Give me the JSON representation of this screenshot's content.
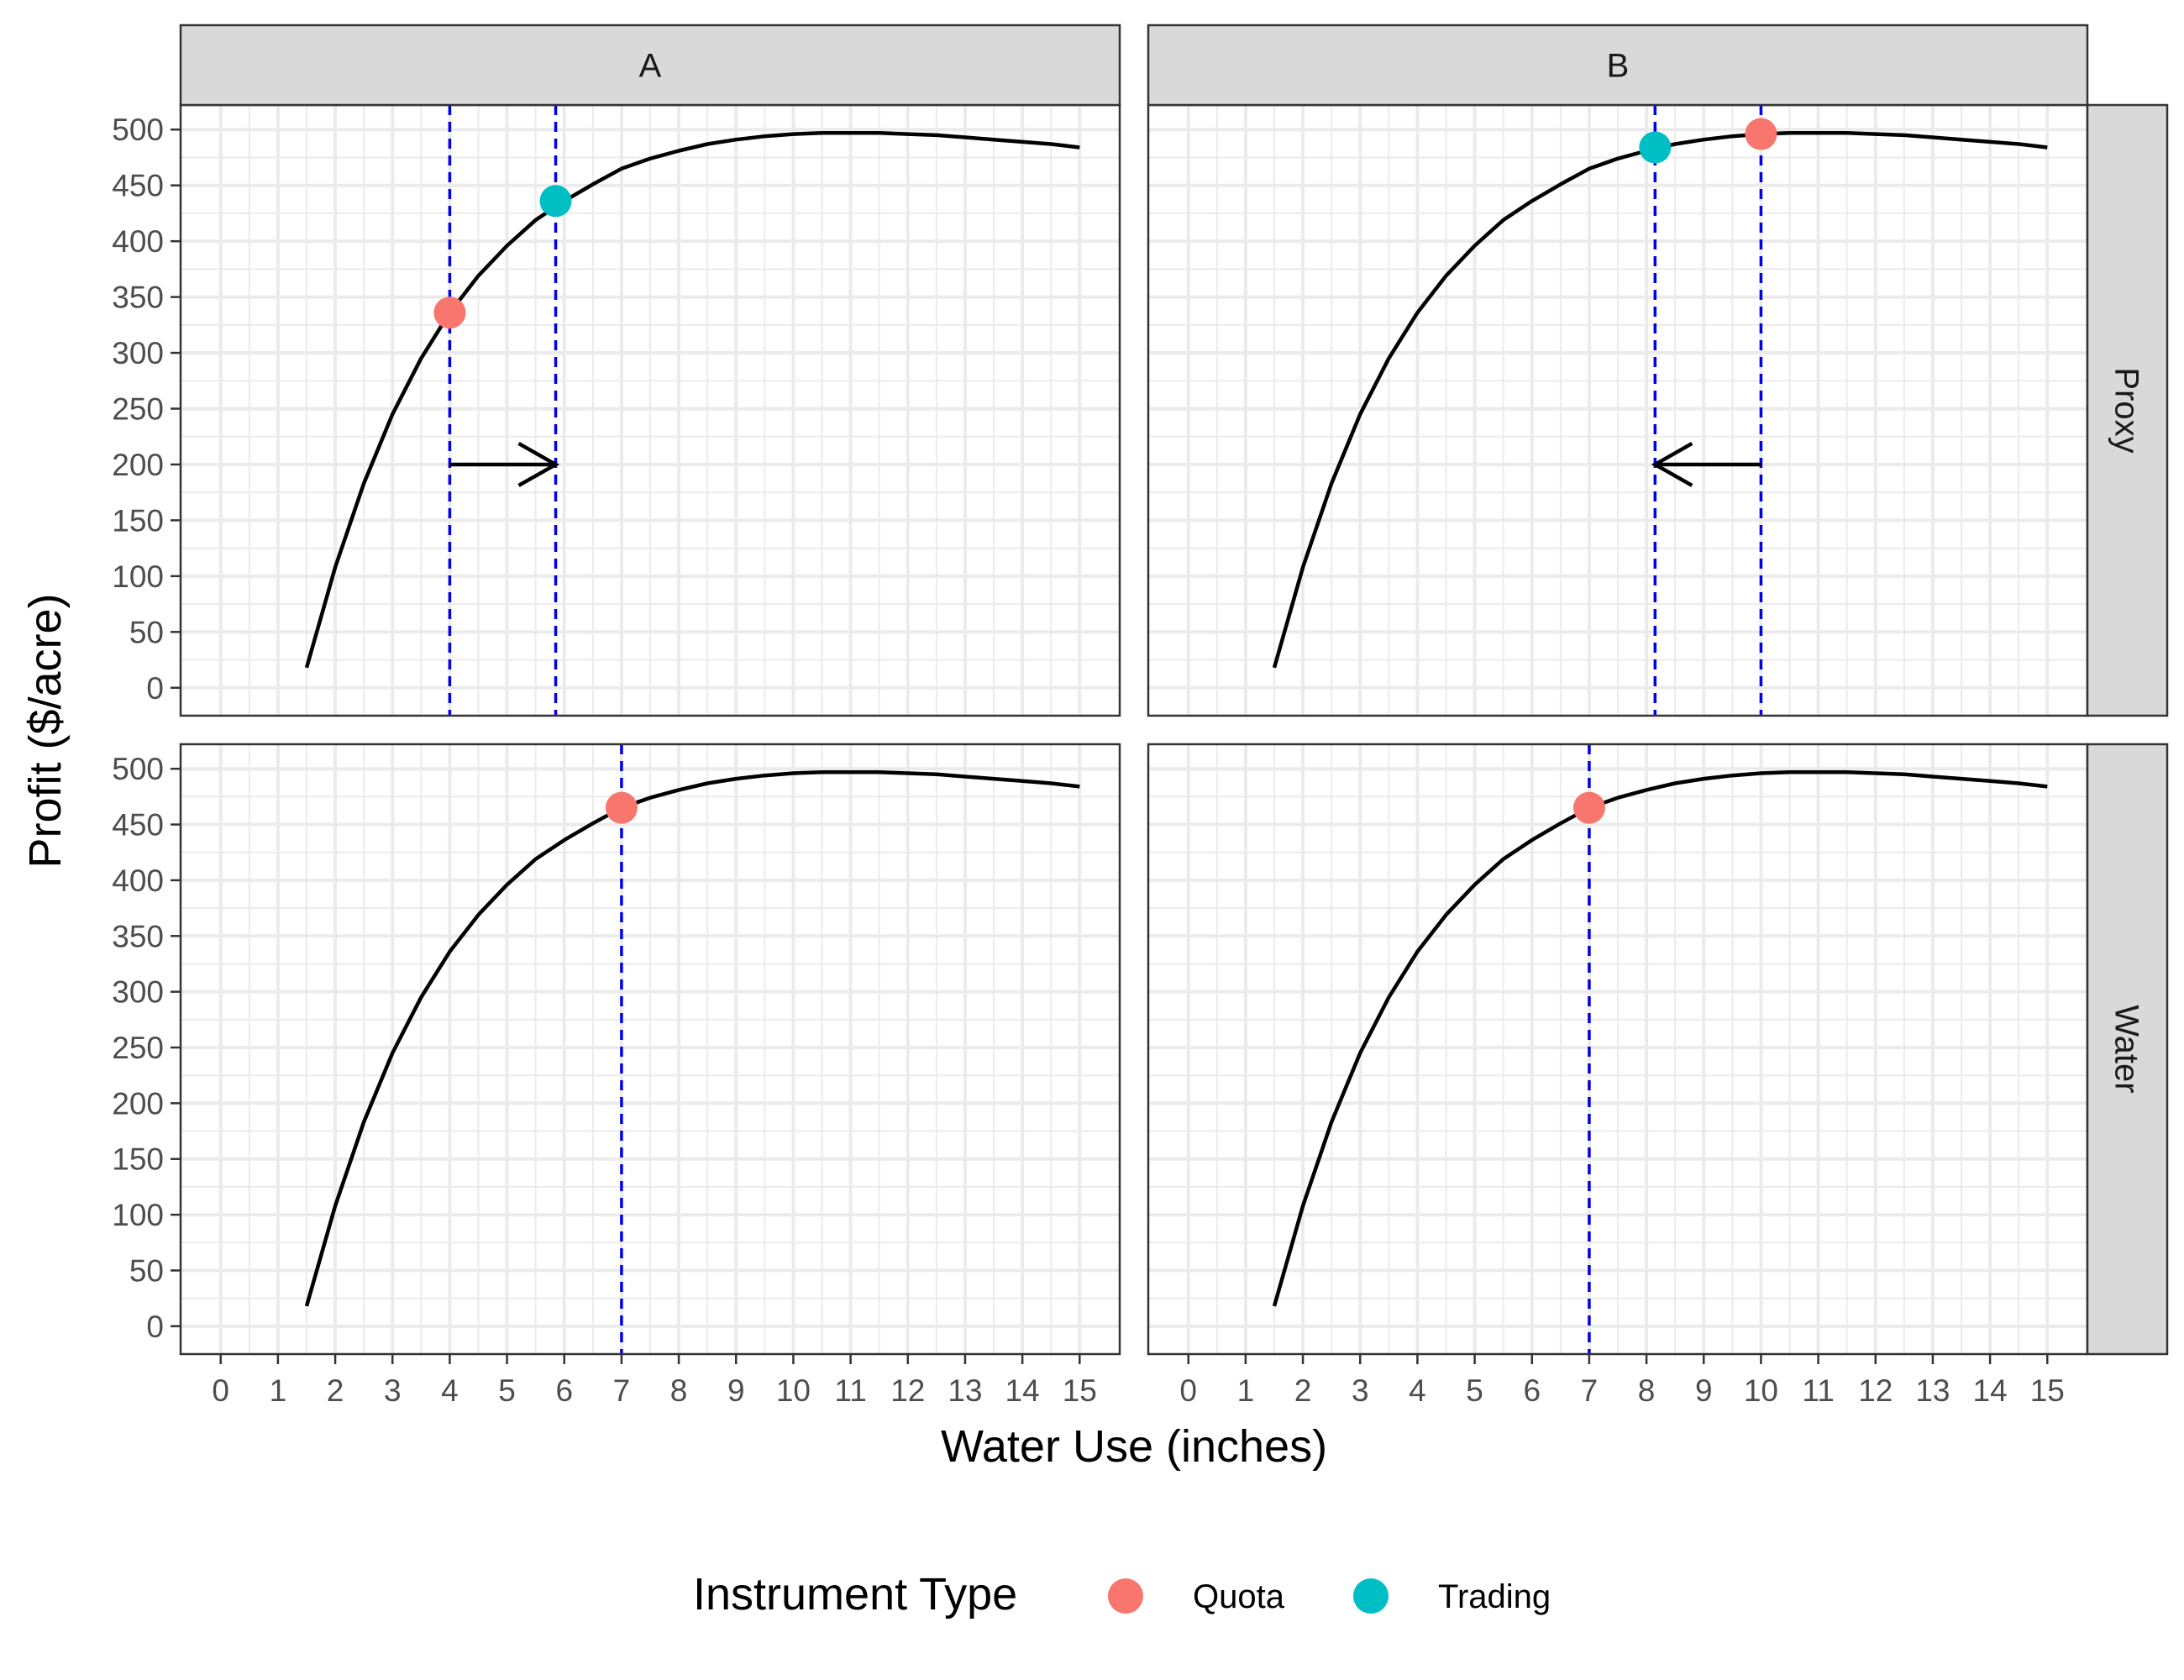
{
  "chart_data": {
    "type": "line",
    "layout": "facet-grid",
    "facet_columns": [
      "A",
      "B"
    ],
    "facet_rows": [
      "Proxy",
      "Water"
    ],
    "xlabel": "Water Use (inches)",
    "ylabel": "Profit ($/acre)",
    "xlim": [
      -0.7,
      15.7
    ],
    "ylim": [
      -25,
      522
    ],
    "x_ticks": [
      0,
      1,
      2,
      3,
      4,
      5,
      6,
      7,
      8,
      9,
      10,
      11,
      12,
      13,
      14,
      15
    ],
    "y_ticks": [
      0,
      50,
      100,
      150,
      200,
      250,
      300,
      350,
      400,
      450,
      500
    ],
    "grid": true,
    "legend": {
      "title": "Instrument Type",
      "position": "bottom",
      "entries": [
        {
          "name": "Quota",
          "color": "#F8766D"
        },
        {
          "name": "Trading",
          "color": "#00BFC4"
        }
      ]
    },
    "curve": {
      "name": "profit function",
      "color": "#000000",
      "x": [
        1.5,
        2,
        2.5,
        3,
        3.5,
        4,
        4.5,
        5,
        5.5,
        6,
        6.5,
        7,
        7.5,
        8,
        8.5,
        9,
        9.5,
        10,
        10.5,
        11,
        11.5,
        12,
        12.5,
        13,
        13.5,
        14,
        14.5,
        15
      ],
      "y": [
        18,
        108,
        183,
        245,
        295,
        336,
        369,
        396,
        419,
        436,
        451,
        465,
        474,
        481,
        487,
        491,
        494,
        496,
        497,
        497,
        497,
        496,
        495,
        493,
        491,
        489,
        487,
        484
      ]
    },
    "panels": [
      {
        "col": "A",
        "row": "Proxy",
        "vlines": [
          4,
          5.85
        ],
        "points": [
          {
            "type": "Quota",
            "x": 4,
            "y": 336
          },
          {
            "type": "Trading",
            "x": 5.85,
            "y": 436
          }
        ],
        "arrow": {
          "from_x": 4,
          "to_x": 5.85,
          "y": 200
        }
      },
      {
        "col": "B",
        "row": "Proxy",
        "vlines": [
          8.15,
          10
        ],
        "points": [
          {
            "type": "Quota",
            "x": 10,
            "y": 496
          },
          {
            "type": "Trading",
            "x": 8.15,
            "y": 484
          }
        ],
        "arrow": {
          "from_x": 10,
          "to_x": 8.15,
          "y": 200
        }
      },
      {
        "col": "A",
        "row": "Water",
        "vlines": [
          7
        ],
        "points": [
          {
            "type": "Quota",
            "x": 7,
            "y": 465
          }
        ]
      },
      {
        "col": "B",
        "row": "Water",
        "vlines": [
          7
        ],
        "points": [
          {
            "type": "Quota",
            "x": 7,
            "y": 465
          }
        ]
      }
    ]
  }
}
